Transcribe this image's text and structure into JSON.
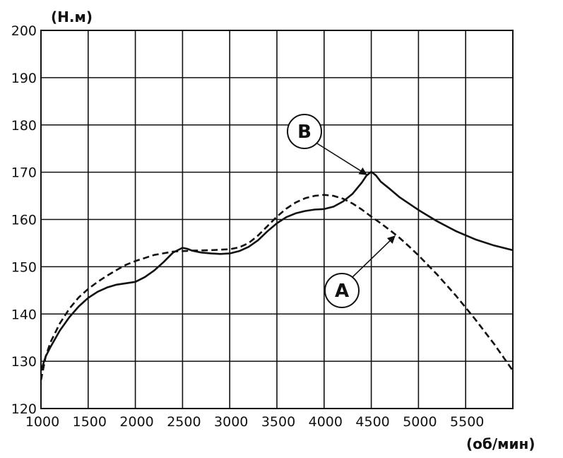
{
  "chart_data": {
    "type": "line",
    "xlabel": "(об/мин)",
    "ylabel": "(Н.м)",
    "xlim": [
      1000,
      6000
    ],
    "ylim": [
      120,
      200
    ],
    "xticks": [
      1000,
      1500,
      2000,
      2500,
      3000,
      3500,
      4000,
      4500,
      5000,
      5500
    ],
    "yticks": [
      120,
      130,
      140,
      150,
      160,
      170,
      180,
      190,
      200
    ],
    "grid": true,
    "series": [
      {
        "name": "B",
        "style": "solid",
        "color": "#111111",
        "x": [
          1000,
          1050,
          1100,
          1200,
          1300,
          1400,
          1500,
          1600,
          1700,
          1800,
          1900,
          2000,
          2100,
          2200,
          2300,
          2400,
          2500,
          2550,
          2600,
          2700,
          2800,
          2900,
          3000,
          3100,
          3200,
          3300,
          3400,
          3500,
          3600,
          3700,
          3800,
          3900,
          4000,
          4100,
          4200,
          4300,
          4400,
          4450,
          4500,
          4550,
          4600,
          4700,
          4800,
          5000,
          5200,
          5400,
          5600,
          5800,
          6000
        ],
        "y": [
          128,
          131,
          133,
          136.5,
          139.3,
          141.6,
          143.4,
          144.7,
          145.6,
          146.2,
          146.5,
          146.8,
          147.8,
          149.2,
          151,
          153,
          154,
          153.8,
          153.4,
          153,
          152.8,
          152.7,
          152.8,
          153.3,
          154.2,
          155.6,
          157.5,
          159.2,
          160.5,
          161.3,
          161.8,
          162.1,
          162.2,
          162.7,
          163.8,
          165.4,
          167.8,
          169.3,
          170.1,
          169.3,
          168,
          166.4,
          164.7,
          162,
          159.6,
          157.5,
          155.8,
          154.5,
          153.5
        ]
      },
      {
        "name": "A",
        "style": "dashed",
        "color": "#111111",
        "x": [
          1000,
          1050,
          1100,
          1200,
          1300,
          1400,
          1500,
          1600,
          1700,
          1800,
          1900,
          2000,
          2200,
          2400,
          2600,
          2800,
          3000,
          3100,
          3200,
          3300,
          3400,
          3500,
          3600,
          3700,
          3800,
          3900,
          4000,
          4100,
          4200,
          4300,
          4400,
          4500,
          4600,
          4700,
          4800,
          4900,
          5000,
          5200,
          5400,
          5600,
          5800,
          6000
        ],
        "y": [
          126,
          131,
          134,
          138,
          141.1,
          143.5,
          145.3,
          146.8,
          148.1,
          149.3,
          150.4,
          151.2,
          152.5,
          153.2,
          153.4,
          153.5,
          153.7,
          154.1,
          155,
          156.6,
          158.6,
          160.6,
          162.3,
          163.6,
          164.5,
          165,
          165.2,
          165,
          164.4,
          163.4,
          162.1,
          160.6,
          159.2,
          157.7,
          156.1,
          154.3,
          152.4,
          148.3,
          143.8,
          138.9,
          133.7,
          128
        ]
      }
    ],
    "annotations": [
      {
        "label": "B",
        "target_series": "B",
        "target_x": 4450,
        "target_y": 169.5
      },
      {
        "label": "A",
        "target_series": "A",
        "target_x": 4750,
        "target_y": 156.5
      }
    ]
  }
}
